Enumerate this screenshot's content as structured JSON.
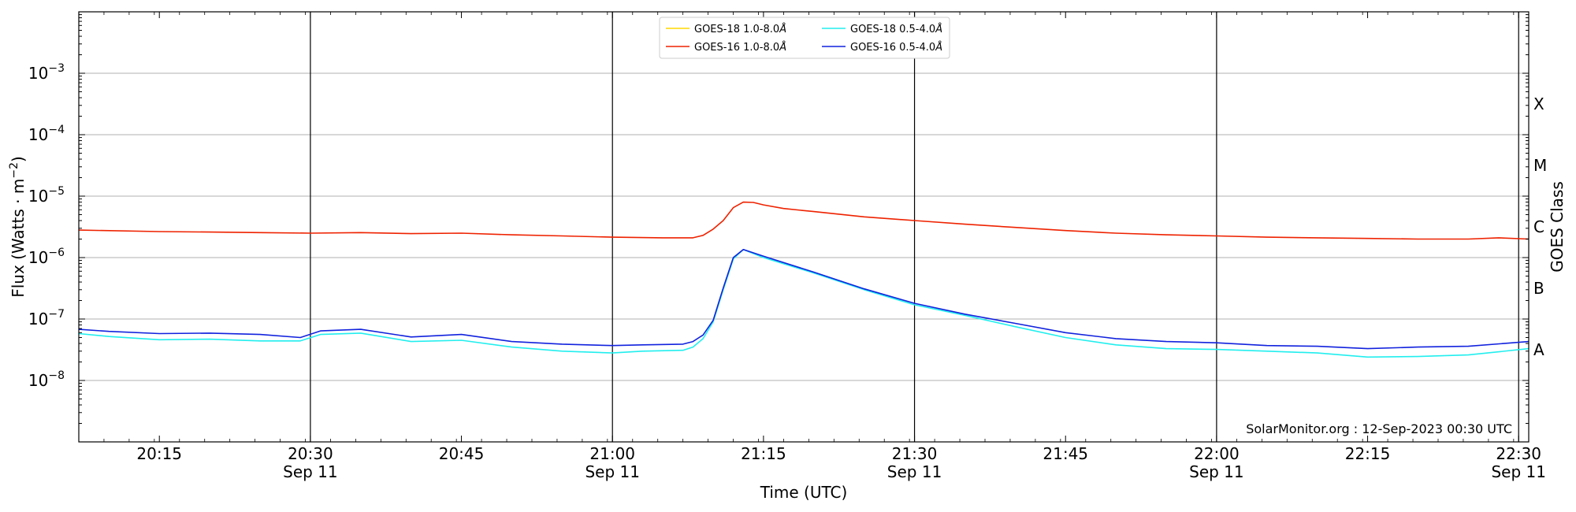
{
  "chart_data": {
    "type": "line",
    "title": "",
    "credit": "SolarMonitor.org : 12-Sep-2023 00:30 UTC",
    "xlabel": "Time (UTC)",
    "ylabel_main": "Flux (Watts · m",
    "ylabel_sup": "−2",
    "ylabel_close": ")",
    "y2label": "GOES Class",
    "yscale": "log",
    "ylim": [
      1e-09,
      0.01
    ],
    "xlim": [
      "20:07",
      "22:31"
    ],
    "x_ticks": [
      {
        "t": "20:15",
        "date": ""
      },
      {
        "t": "20:30",
        "date": "Sep 11"
      },
      {
        "t": "20:45",
        "date": ""
      },
      {
        "t": "21:00",
        "date": "Sep 11"
      },
      {
        "t": "21:15",
        "date": ""
      },
      {
        "t": "21:30",
        "date": "Sep 11"
      },
      {
        "t": "21:45",
        "date": ""
      },
      {
        "t": "22:00",
        "date": "Sep 11"
      },
      {
        "t": "22:15",
        "date": ""
      },
      {
        "t": "22:30",
        "date": "Sep 11"
      }
    ],
    "y_ticks": [
      {
        "base": "10",
        "exp": "−8",
        "value": 1e-08
      },
      {
        "base": "10",
        "exp": "−7",
        "value": 1e-07
      },
      {
        "base": "10",
        "exp": "−6",
        "value": 1e-06
      },
      {
        "base": "10",
        "exp": "−5",
        "value": 1e-05
      },
      {
        "base": "10",
        "exp": "−4",
        "value": 0.0001
      },
      {
        "base": "10",
        "exp": "−3",
        "value": 0.001
      }
    ],
    "goes_classes": [
      {
        "label": "A",
        "value": 1e-08
      },
      {
        "label": "B",
        "value": 1e-07
      },
      {
        "label": "C",
        "value": 1e-06
      },
      {
        "label": "M",
        "value": 1e-05
      },
      {
        "label": "X",
        "value": 0.0001
      }
    ],
    "grid_y": true,
    "vertical_lines": [
      "20:30",
      "21:00",
      "21:30",
      "22:00",
      "22:30"
    ],
    "legend_position": "top-center",
    "series": [
      {
        "name": "GOES-18 1.0-8.0",
        "unit": "Å",
        "color": "#ffd700",
        "points": []
      },
      {
        "name": "GOES-16 1.0-8.0",
        "unit": "Å",
        "color": "#ee2200",
        "points": [
          [
            "20:07",
            2.8e-06
          ],
          [
            "20:15",
            2.65e-06
          ],
          [
            "20:20",
            2.6e-06
          ],
          [
            "20:25",
            2.55e-06
          ],
          [
            "20:30",
            2.5e-06
          ],
          [
            "20:35",
            2.55e-06
          ],
          [
            "20:40",
            2.45e-06
          ],
          [
            "20:45",
            2.5e-06
          ],
          [
            "20:50",
            2.35e-06
          ],
          [
            "20:55",
            2.25e-06
          ],
          [
            "21:00",
            2.15e-06
          ],
          [
            "21:05",
            2.1e-06
          ],
          [
            "21:08",
            2.1e-06
          ],
          [
            "21:09",
            2.3e-06
          ],
          [
            "21:10",
            2.9e-06
          ],
          [
            "21:11",
            4e-06
          ],
          [
            "21:12",
            6.5e-06
          ],
          [
            "21:13",
            8e-06
          ],
          [
            "21:14",
            7.9e-06
          ],
          [
            "21:15",
            7.2e-06
          ],
          [
            "21:17",
            6.3e-06
          ],
          [
            "21:20",
            5.6e-06
          ],
          [
            "21:25",
            4.6e-06
          ],
          [
            "21:30",
            4e-06
          ],
          [
            "21:35",
            3.5e-06
          ],
          [
            "21:40",
            3.1e-06
          ],
          [
            "21:45",
            2.75e-06
          ],
          [
            "21:50",
            2.5e-06
          ],
          [
            "21:55",
            2.35e-06
          ],
          [
            "22:00",
            2.25e-06
          ],
          [
            "22:05",
            2.15e-06
          ],
          [
            "22:10",
            2.1e-06
          ],
          [
            "22:15",
            2.05e-06
          ],
          [
            "22:20",
            2e-06
          ],
          [
            "22:25",
            2e-06
          ],
          [
            "22:28",
            2.1e-06
          ],
          [
            "22:31",
            2e-06
          ]
        ]
      },
      {
        "name": "GOES-18 0.5-4.0",
        "unit": "Å",
        "color": "#22eeee",
        "points": [
          [
            "20:07",
            5.8e-08
          ],
          [
            "20:10",
            5.2e-08
          ],
          [
            "20:15",
            4.6e-08
          ],
          [
            "20:20",
            4.7e-08
          ],
          [
            "20:25",
            4.4e-08
          ],
          [
            "20:29",
            4.4e-08
          ],
          [
            "20:31",
            5.6e-08
          ],
          [
            "20:35",
            5.9e-08
          ],
          [
            "20:40",
            4.3e-08
          ],
          [
            "20:45",
            4.5e-08
          ],
          [
            "20:50",
            3.5e-08
          ],
          [
            "20:55",
            3e-08
          ],
          [
            "21:00",
            2.8e-08
          ],
          [
            "21:03",
            3e-08
          ],
          [
            "21:07",
            3.1e-08
          ],
          [
            "21:08",
            3.5e-08
          ],
          [
            "21:09",
            4.8e-08
          ],
          [
            "21:10",
            9e-08
          ],
          [
            "21:11",
            3e-07
          ],
          [
            "21:12",
            9.5e-07
          ],
          [
            "21:13",
            1.35e-06
          ],
          [
            "21:15",
            1e-06
          ],
          [
            "21:20",
            5.6e-07
          ],
          [
            "21:25",
            3e-07
          ],
          [
            "21:30",
            1.7e-07
          ],
          [
            "21:35",
            1.15e-07
          ],
          [
            "21:40",
            7.5e-08
          ],
          [
            "21:45",
            5e-08
          ],
          [
            "21:50",
            3.8e-08
          ],
          [
            "21:55",
            3.3e-08
          ],
          [
            "22:00",
            3.2e-08
          ],
          [
            "22:05",
            3e-08
          ],
          [
            "22:10",
            2.8e-08
          ],
          [
            "22:15",
            2.4e-08
          ],
          [
            "22:20",
            2.45e-08
          ],
          [
            "22:25",
            2.6e-08
          ],
          [
            "22:31",
            3.3e-08
          ]
        ]
      },
      {
        "name": "GOES-16 0.5-4.0",
        "unit": "Å",
        "color": "#1122dd",
        "points": [
          [
            "20:07",
            6.8e-08
          ],
          [
            "20:10",
            6.3e-08
          ],
          [
            "20:15",
            5.8e-08
          ],
          [
            "20:20",
            5.9e-08
          ],
          [
            "20:25",
            5.6e-08
          ],
          [
            "20:29",
            5e-08
          ],
          [
            "20:31",
            6.4e-08
          ],
          [
            "20:35",
            6.8e-08
          ],
          [
            "20:40",
            5.1e-08
          ],
          [
            "20:45",
            5.6e-08
          ],
          [
            "20:50",
            4.3e-08
          ],
          [
            "20:55",
            3.9e-08
          ],
          [
            "21:00",
            3.7e-08
          ],
          [
            "21:03",
            3.8e-08
          ],
          [
            "21:07",
            3.9e-08
          ],
          [
            "21:08",
            4.3e-08
          ],
          [
            "21:09",
            5.5e-08
          ],
          [
            "21:10",
            9.5e-08
          ],
          [
            "21:11",
            3.2e-07
          ],
          [
            "21:12",
            1e-06
          ],
          [
            "21:13",
            1.35e-06
          ],
          [
            "21:15",
            1.05e-06
          ],
          [
            "21:20",
            5.8e-07
          ],
          [
            "21:25",
            3.1e-07
          ],
          [
            "21:30",
            1.8e-07
          ],
          [
            "21:35",
            1.2e-07
          ],
          [
            "21:40",
            8.5e-08
          ],
          [
            "21:45",
            6e-08
          ],
          [
            "21:50",
            4.8e-08
          ],
          [
            "21:55",
            4.3e-08
          ],
          [
            "22:00",
            4.1e-08
          ],
          [
            "22:05",
            3.7e-08
          ],
          [
            "22:10",
            3.6e-08
          ],
          [
            "22:15",
            3.3e-08
          ],
          [
            "22:20",
            3.5e-08
          ],
          [
            "22:25",
            3.6e-08
          ],
          [
            "22:31",
            4.3e-08
          ]
        ]
      }
    ]
  }
}
